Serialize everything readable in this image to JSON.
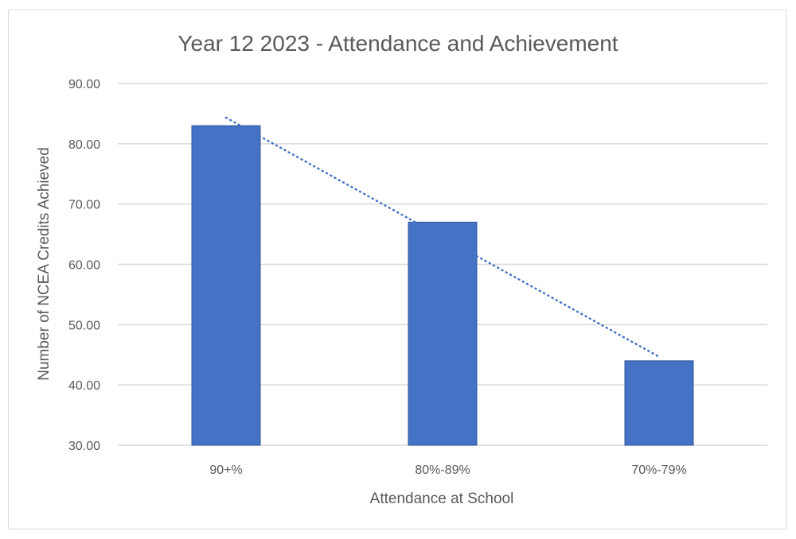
{
  "chart_data": {
    "type": "bar",
    "title": "Year 12 2023 - Attendance and Achievement",
    "xlabel": "Attendance at School",
    "ylabel": "Number of NCEA Credits Achieved",
    "categories": [
      "90+%",
      "80%-89%",
      "70%-79%"
    ],
    "values": [
      83,
      67,
      44
    ],
    "ylim": [
      30,
      90
    ],
    "yticks": [
      "30.00",
      "40.00",
      "50.00",
      "60.00",
      "70.00",
      "80.00",
      "90.00"
    ],
    "grid": true,
    "trendline": {
      "type": "linear",
      "style": "dotted",
      "start": 84.33,
      "end": 44.67
    },
    "colors": {
      "bar": "#4472C4",
      "trendline": "#4472C4",
      "grid": "#d9d9d9"
    }
  }
}
